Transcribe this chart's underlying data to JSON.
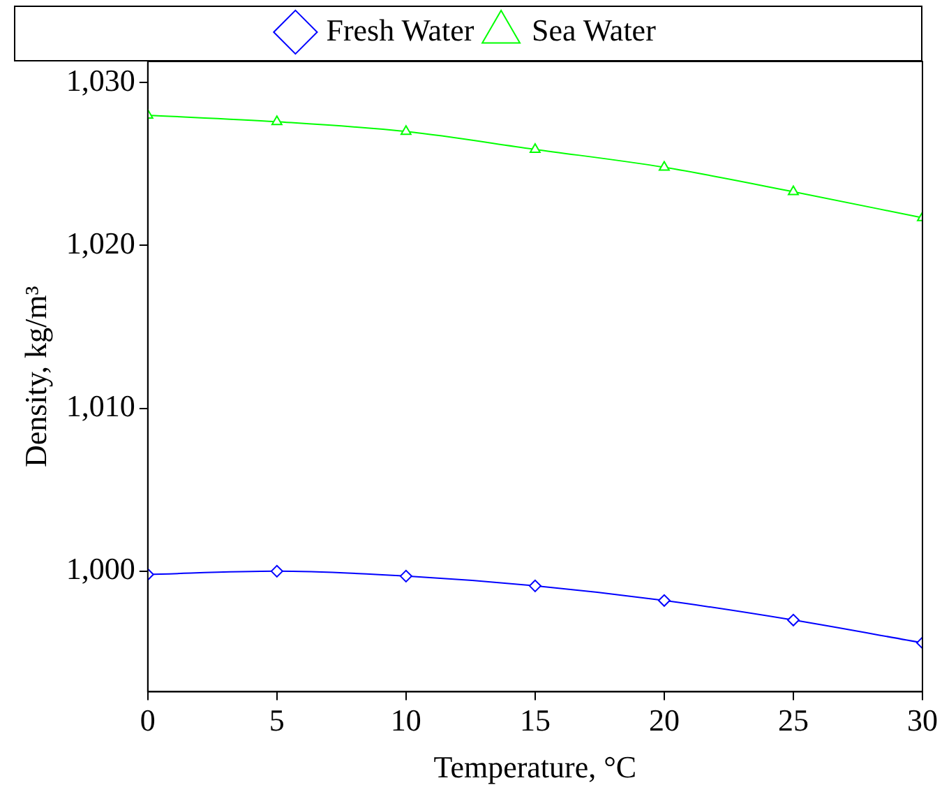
{
  "chart_data": {
    "type": "line",
    "xlabel": "Temperature, °C",
    "ylabel": "Density, kg/m³",
    "x": [
      0,
      5,
      10,
      15,
      20,
      25,
      30
    ],
    "series": [
      {
        "name": "Fresh Water",
        "color": "#0000ff",
        "marker": "diamond",
        "values": [
          999.8,
          1000.0,
          999.7,
          999.1,
          998.2,
          997.0,
          995.6
        ]
      },
      {
        "name": "Sea Water",
        "color": "#00ff00",
        "marker": "triangle",
        "values": [
          1028.0,
          1027.6,
          1027.0,
          1025.9,
          1024.8,
          1023.3,
          1021.7
        ]
      }
    ],
    "xlim": [
      0,
      30
    ],
    "xticks": [
      0,
      5,
      10,
      15,
      20,
      25,
      30
    ],
    "ylim": [
      992.6,
      1031.3
    ],
    "yticks": [
      {
        "value": 1000,
        "label": "1,000"
      },
      {
        "value": 1010,
        "label": "1,010"
      },
      {
        "value": 1020,
        "label": "1,020"
      },
      {
        "value": 1030,
        "label": "1,030"
      }
    ],
    "grid": false,
    "legend": "top"
  }
}
